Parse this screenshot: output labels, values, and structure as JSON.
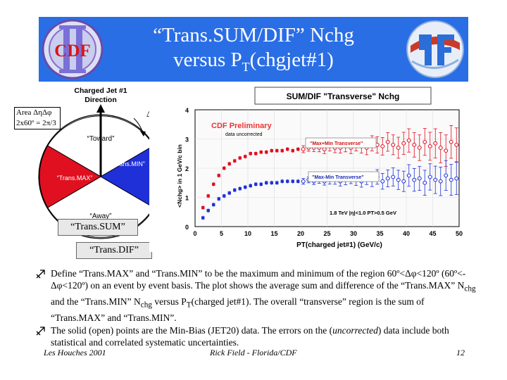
{
  "slide": {
    "title_line1": "“Trans.SUM/DIF” Nchg",
    "title_line2_pre": "versus P",
    "title_line2_sub": "T",
    "title_line2_post": "(chgjet#1)"
  },
  "logos": {
    "left_text": "CDF",
    "left_roman": "II"
  },
  "area_box": {
    "line1": "Area ΔηΔφ",
    "line2": "2x60º = 2π/3"
  },
  "diagram": {
    "jet_label_line1": "Charged Jet #1",
    "jet_label_line2": "Direction",
    "dphi": "Δφ",
    "toward": "“Toward”",
    "trans_max": "“Trans.MAX”",
    "trans_min": "“Trans.MIN”",
    "away": "“Away”",
    "trans_sum": "“Trans.SUM”",
    "trans_dif": "“Trans.DIF”",
    "colors": {
      "max": "#e01020",
      "min": "#2030d8",
      "toward": "#ffffff",
      "away": "#ffffff"
    }
  },
  "chart_data": {
    "type": "scatter",
    "title": "SUM/DIF \"Transverse\" Nchg",
    "watermark_line1": "CDF Preliminary",
    "watermark_line2": "data uncorrected",
    "xlabel": "PT(charged jet#1) (GeV/c)",
    "ylabel": "<Nchg> in 1 GeV/c bin",
    "cut_label": "1.8 TeV |η|<1.0 PT>0.5 GeV",
    "xlim": [
      0,
      50
    ],
    "ylim": [
      0,
      4
    ],
    "xticks": [
      0,
      5,
      10,
      15,
      20,
      25,
      30,
      35,
      40,
      45,
      50
    ],
    "yticks": [
      0,
      1,
      2,
      3,
      4
    ],
    "series": [
      {
        "name": "\"Max+Min Transverse\"",
        "color": "#e01020",
        "filled_x": [
          1.5,
          2.5,
          3.5,
          4.5,
          5.5,
          6.5,
          7.5,
          8.5,
          9.5,
          10.5,
          11.5,
          12.5,
          13.5,
          14.5,
          15.5,
          16.5,
          17.5,
          18.5,
          19.5
        ],
        "filled_y": [
          0.65,
          1.05,
          1.45,
          1.75,
          2.0,
          2.15,
          2.25,
          2.35,
          2.4,
          2.5,
          2.5,
          2.55,
          2.55,
          2.6,
          2.6,
          2.6,
          2.65,
          2.6,
          2.65
        ],
        "open_x": [
          20.5,
          21.5,
          22.5,
          23.5,
          24.5,
          25.5,
          26.5,
          27.5,
          28.5,
          29.5,
          30.5,
          31.5,
          32.5,
          33.5,
          34.5,
          35.5,
          36.5,
          37.5,
          38.5,
          39.5,
          40.5,
          41.5,
          42.5,
          43.5,
          44.5,
          45.5,
          46.5,
          47.5,
          48.5,
          49.5
        ],
        "open_y": [
          2.65,
          2.7,
          2.7,
          2.7,
          2.65,
          2.75,
          2.7,
          2.7,
          2.75,
          2.7,
          2.8,
          2.75,
          2.7,
          2.85,
          2.8,
          2.75,
          2.9,
          2.8,
          2.7,
          2.85,
          2.95,
          2.8,
          2.7,
          2.9,
          2.75,
          2.85,
          2.7,
          2.6,
          2.9,
          2.8
        ],
        "open_err": [
          0.12,
          0.12,
          0.13,
          0.14,
          0.15,
          0.16,
          0.17,
          0.18,
          0.19,
          0.2,
          0.21,
          0.23,
          0.24,
          0.26,
          0.28,
          0.3,
          0.32,
          0.34,
          0.36,
          0.38,
          0.4,
          0.42,
          0.44,
          0.46,
          0.48,
          0.5,
          0.52,
          0.54,
          0.56,
          0.58
        ]
      },
      {
        "name": "\"Max-Min Transverse\"",
        "color": "#2030d8",
        "filled_x": [
          1.5,
          2.5,
          3.5,
          4.5,
          5.5,
          6.5,
          7.5,
          8.5,
          9.5,
          10.5,
          11.5,
          12.5,
          13.5,
          14.5,
          15.5,
          16.5,
          17.5,
          18.5,
          19.5
        ],
        "filled_y": [
          0.3,
          0.55,
          0.75,
          0.95,
          1.05,
          1.15,
          1.25,
          1.3,
          1.35,
          1.4,
          1.45,
          1.45,
          1.5,
          1.5,
          1.5,
          1.55,
          1.55,
          1.55,
          1.55
        ],
        "open_x": [
          20.5,
          21.5,
          22.5,
          23.5,
          24.5,
          25.5,
          26.5,
          27.5,
          28.5,
          29.5,
          30.5,
          31.5,
          32.5,
          33.5,
          34.5,
          35.5,
          36.5,
          37.5,
          38.5,
          39.5,
          40.5,
          41.5,
          42.5,
          43.5,
          44.5,
          45.5,
          46.5,
          47.5,
          48.5,
          49.5
        ],
        "open_y": [
          1.55,
          1.6,
          1.55,
          1.6,
          1.55,
          1.6,
          1.6,
          1.55,
          1.6,
          1.65,
          1.6,
          1.55,
          1.65,
          1.6,
          1.7,
          1.55,
          1.65,
          1.7,
          1.6,
          1.55,
          1.75,
          1.6,
          1.65,
          1.5,
          1.7,
          1.6,
          1.55,
          1.75,
          1.6,
          1.65
        ],
        "open_err": [
          0.1,
          0.1,
          0.11,
          0.12,
          0.13,
          0.14,
          0.15,
          0.16,
          0.17,
          0.18,
          0.19,
          0.2,
          0.21,
          0.23,
          0.25,
          0.27,
          0.29,
          0.31,
          0.33,
          0.35,
          0.37,
          0.39,
          0.41,
          0.43,
          0.45,
          0.47,
          0.49,
          0.51,
          0.53,
          0.55
        ]
      }
    ]
  },
  "bullets": {
    "b1_t1": "Define “Trans.MAX” and “Trans.MIN” to be the maximum and minimum of the region 60º<Δφ<120º (60º<-Δφ<120º) on an event by event basis. The plot shows the average sum and difference of the “Trans.MAX” N",
    "b1_sub1": "chg",
    "b1_t2": " and the “Trans.MIN” N",
    "b1_sub2": "chg",
    "b1_t3": " versus P",
    "b1_sub3": "T",
    "b1_t4": "(charged jet#1). The overall “transverse” region is the sum of “Trans.MAX” and “Trans.MIN”.",
    "b2_t1": "The solid (open) points are the Min-Bias (JET20) data. The errors on the (",
    "b2_em": "uncorrected",
    "b2_t2": ") data include both statistical and correlated systematic uncertainties."
  },
  "footer": {
    "left": "Les Houches 2001",
    "center": "Rick Field - Florida/CDF",
    "page": "12"
  }
}
